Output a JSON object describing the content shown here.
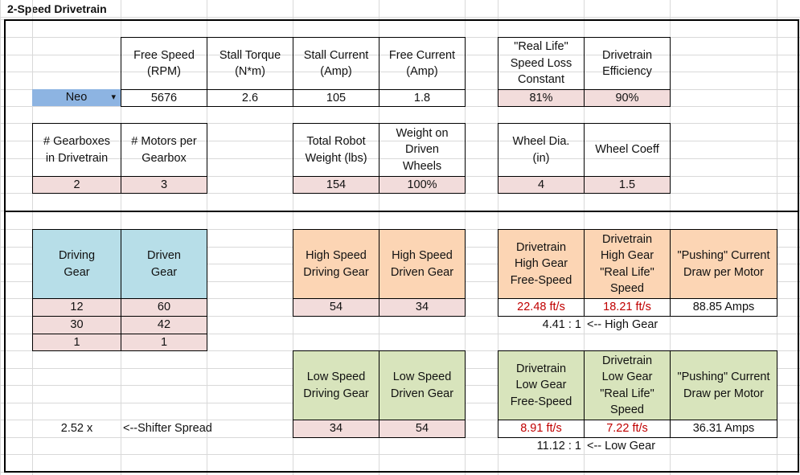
{
  "title": "2-Speed Drivetrain",
  "motor": {
    "selector": "Neo",
    "columns": [
      {
        "header": "Free Speed\n(RPM)",
        "value": "5676"
      },
      {
        "header": "Stall Torque\n(N*m)",
        "value": "2.6"
      },
      {
        "header": "Stall Current\n(Amp)",
        "value": "105"
      },
      {
        "header": "Free Current\n(Amp)",
        "value": "1.8"
      }
    ]
  },
  "efficiency": [
    {
      "header": "\"Real Life\"\nSpeed Loss\nConstant",
      "value": "81%"
    },
    {
      "header": "Drivetrain\nEfficiency",
      "value": "90%"
    }
  ],
  "gearbox": [
    {
      "header": "# Gearboxes\nin Drivetrain",
      "value": "2"
    },
    {
      "header": "# Motors per\nGearbox",
      "value": "3"
    }
  ],
  "weight": [
    {
      "header": "Total Robot\nWeight (lbs)",
      "value": "154"
    },
    {
      "header": "Weight on\nDriven\nWheels",
      "value": "100%"
    }
  ],
  "wheel": [
    {
      "header": "Wheel Dia.\n(in)",
      "value": "4"
    },
    {
      "header": "Wheel Coeff",
      "value": "1.5"
    }
  ],
  "gear_stages": {
    "headers": [
      "Driving\nGear",
      "Driven\nGear"
    ],
    "rows": [
      [
        "12",
        "60"
      ],
      [
        "30",
        "42"
      ],
      [
        "1",
        "1"
      ]
    ]
  },
  "high_gear": {
    "headers": [
      "High Speed\nDriving Gear",
      "High Speed\nDriven Gear"
    ],
    "values": [
      "54",
      "34"
    ],
    "outputs": [
      {
        "header": "Drivetrain\nHigh Gear\nFree-Speed",
        "value": "22.48 ft/s"
      },
      {
        "header": "Drivetrain\nHigh Gear\n\"Real Life\"\nSpeed",
        "value": "18.21 ft/s"
      },
      {
        "header": "\"Pushing\" Current\nDraw per Motor",
        "value": "88.85 Amps"
      }
    ],
    "ratio": "4.41 : 1",
    "ratio_label": "<-- High Gear"
  },
  "low_gear": {
    "headers": [
      "Low Speed\nDriving Gear",
      "Low Speed\nDriven Gear"
    ],
    "values": [
      "34",
      "54"
    ],
    "outputs": [
      {
        "header": "Drivetrain\nLow Gear\nFree-Speed",
        "value": "8.91 ft/s"
      },
      {
        "header": "Drivetrain\nLow Gear\n\"Real Life\"\nSpeed",
        "value": "7.22 ft/s"
      },
      {
        "header": "\"Pushing\" Current\nDraw per Motor",
        "value": "36.31 Amps"
      }
    ],
    "ratio": "11.12 : 1",
    "ratio_label": "<-- Low Gear"
  },
  "shifter_spread": {
    "value": "2.52 x",
    "label": "<--Shifter Spread"
  }
}
